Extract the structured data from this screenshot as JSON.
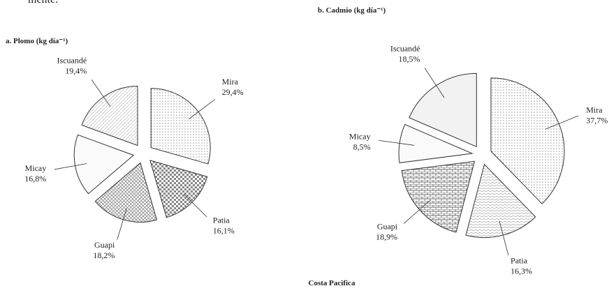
{
  "fragment": "mente.",
  "footer": "Costa Pacifica",
  "chart_data": [
    {
      "type": "pie",
      "title": "a. Plomo (kg día⁻¹)",
      "categories": [
        "Mira",
        "Patia",
        "Guapi",
        "Micay",
        "Iscuandé"
      ],
      "values": [
        29.4,
        16.1,
        18.2,
        16.8,
        19.4
      ],
      "value_labels": [
        "29,4%",
        "16,1%",
        "18,2%",
        "16,8%",
        "19,4%"
      ],
      "patterns": [
        "dots",
        "checker",
        "crosshatch",
        "plain",
        "diagonal"
      ]
    },
    {
      "type": "pie",
      "title": "b. Cadmio (kg día⁻¹)",
      "categories": [
        "Mira",
        "Patia",
        "Guapi",
        "Micay",
        "Iscuandé"
      ],
      "values": [
        37.7,
        16.3,
        18.9,
        8.5,
        18.5
      ],
      "value_labels": [
        "37,7%",
        "16,3%",
        "18,9%",
        "8,5%",
        "18,5%"
      ],
      "patterns": [
        "dots",
        "zigzag",
        "brick",
        "plain",
        "light"
      ]
    }
  ]
}
